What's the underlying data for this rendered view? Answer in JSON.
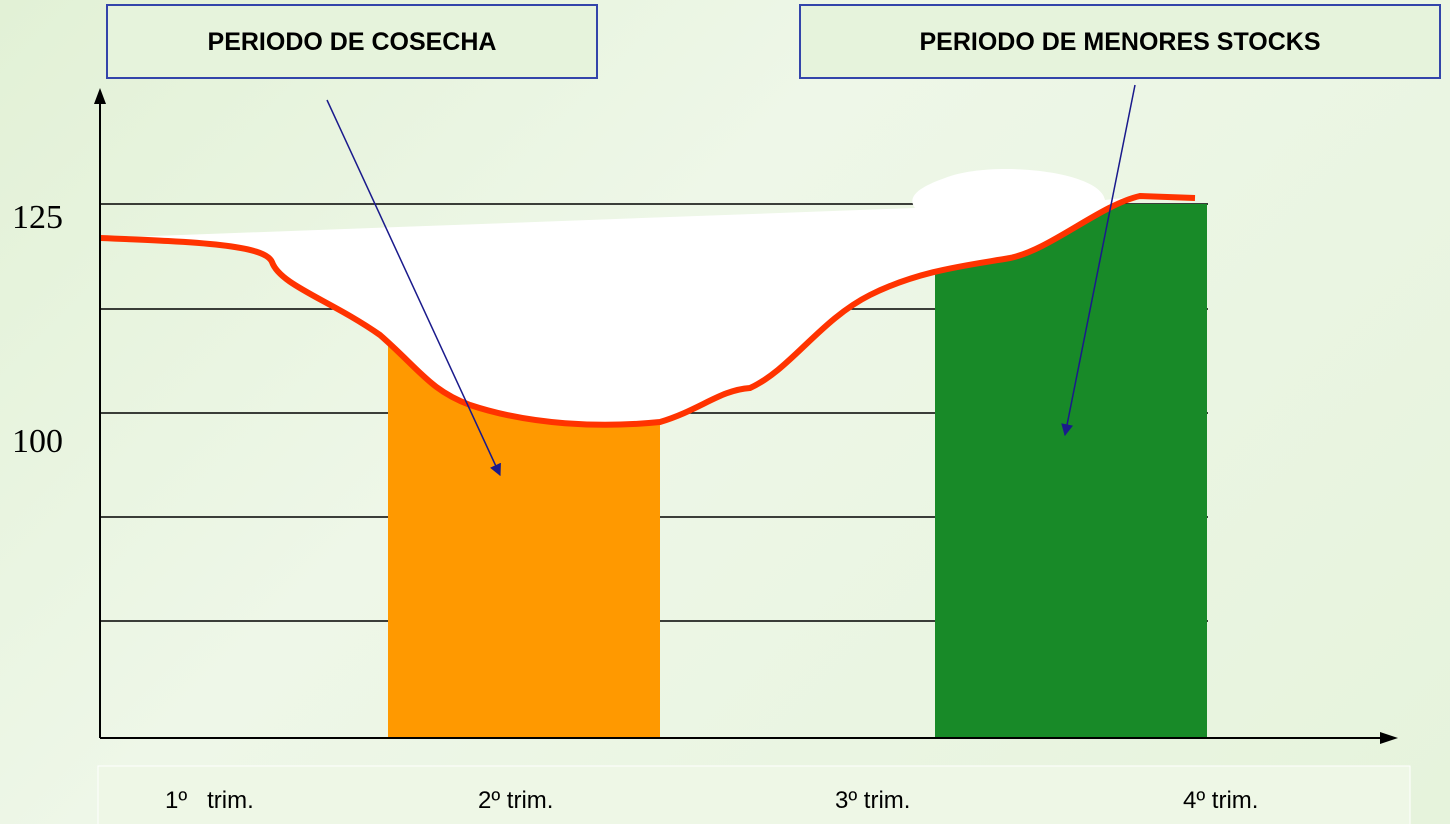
{
  "labels": {
    "harvest": "PERIODO DE COSECHA",
    "low_stocks": "PERIODO DE MENORES STOCKS"
  },
  "y_labels": [
    "125",
    "100"
  ],
  "quarters": [
    "1º   trim.",
    "2º trim.",
    "3º trim.",
    "4º trim."
  ]
}
